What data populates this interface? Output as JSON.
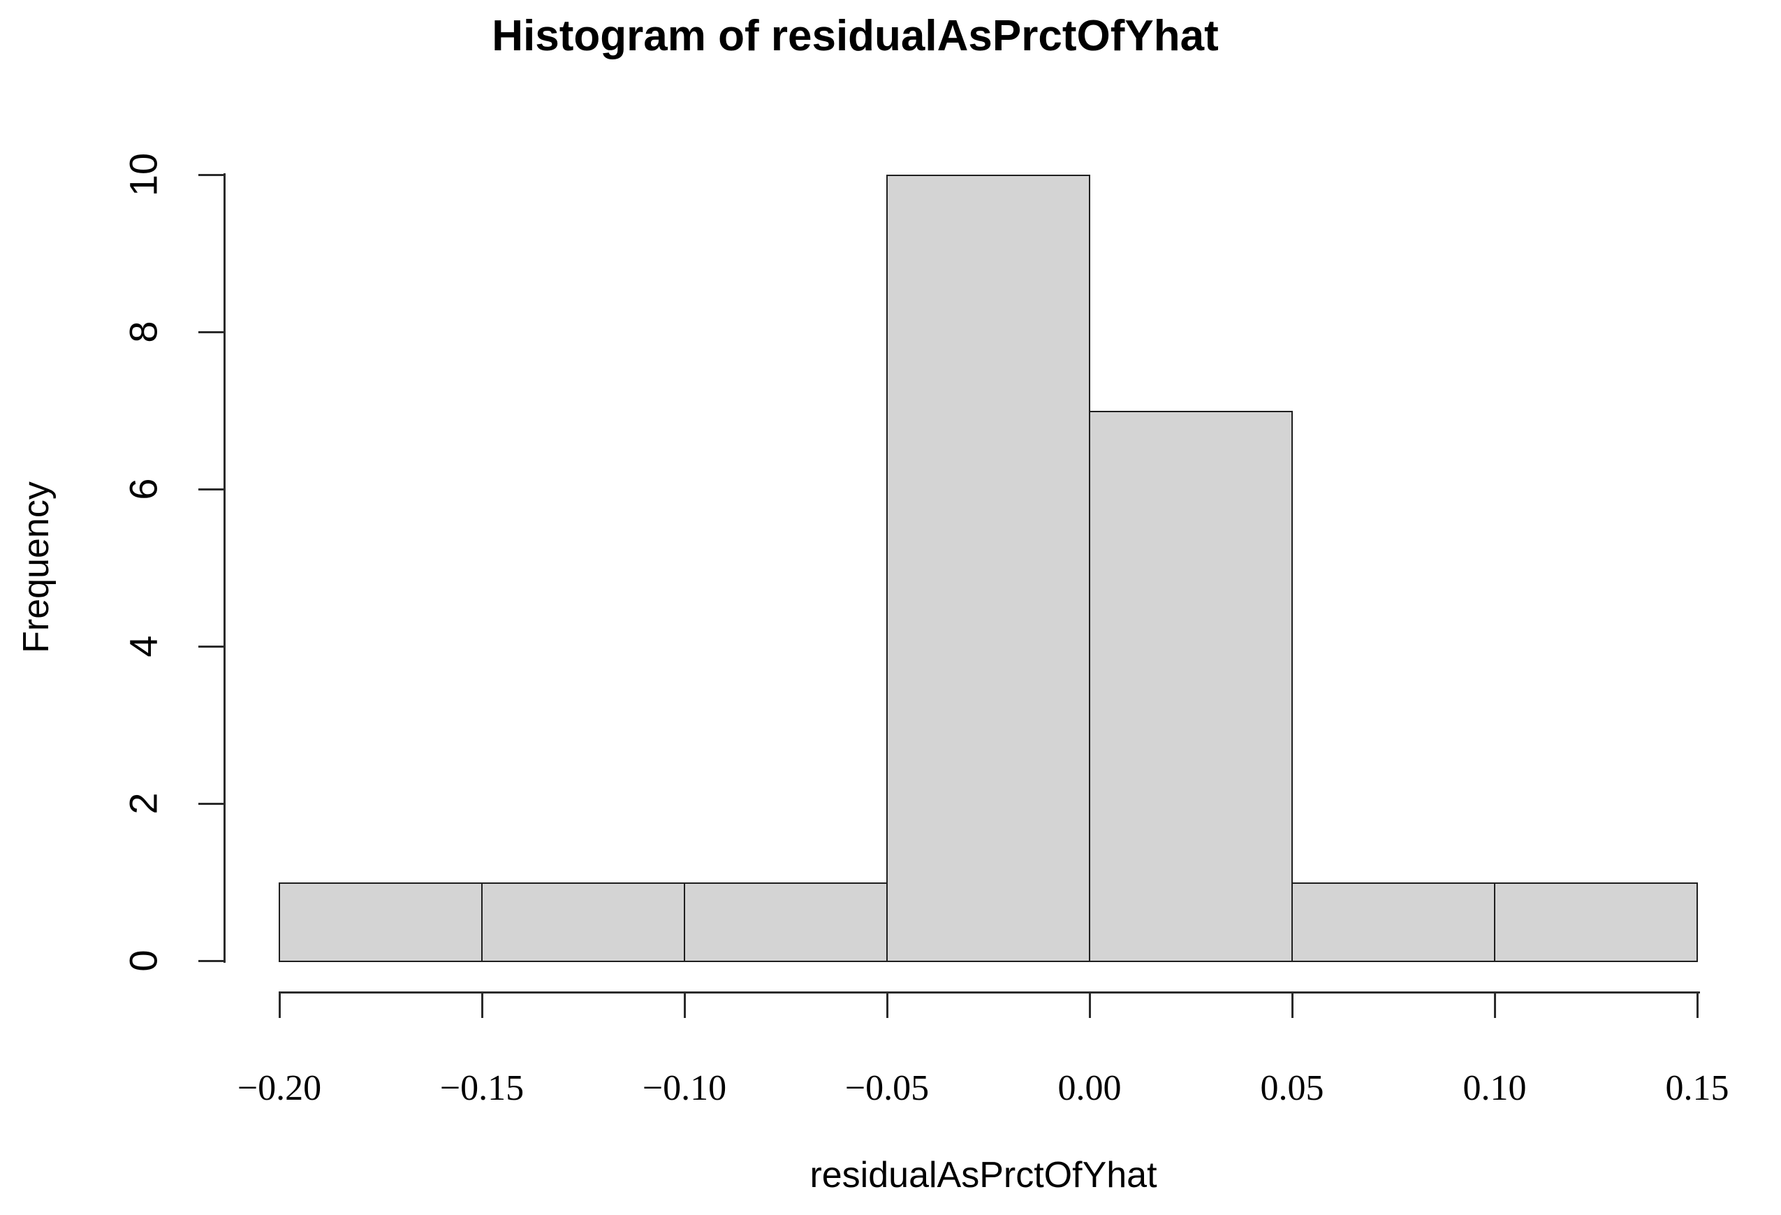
{
  "chart_data": {
    "type": "bar",
    "subtype": "histogram",
    "title": "Histogram of residualAsPrctOfYhat",
    "xlabel": "residualAsPrctOfYhat",
    "ylabel": "Frequency",
    "bin_edges": [
      -0.2,
      -0.15,
      -0.1,
      -0.05,
      0.0,
      0.05,
      0.1,
      0.15
    ],
    "counts": [
      1,
      1,
      1,
      10,
      7,
      1,
      1
    ],
    "x_tick_values": [
      -0.2,
      -0.15,
      -0.1,
      -0.05,
      0.0,
      0.05,
      0.1,
      0.15
    ],
    "x_tick_labels": [
      "−0.20",
      "−0.15",
      "−0.10",
      "−0.05",
      "0.00",
      "0.05",
      "0.10",
      "0.15"
    ],
    "y_tick_values": [
      0,
      2,
      4,
      6,
      8,
      10
    ],
    "y_tick_labels": [
      "0",
      "2",
      "4",
      "6",
      "8",
      "10"
    ],
    "xlim": [
      -0.2,
      0.15
    ],
    "ylim": [
      0,
      10
    ],
    "grid": false,
    "legend_position": "none",
    "colors": {
      "bar_fill": "#d4d4d4",
      "bar_border": "#1f1f1f",
      "axis": "#2b2b2b",
      "text": "#000000",
      "background": "#ffffff"
    }
  }
}
